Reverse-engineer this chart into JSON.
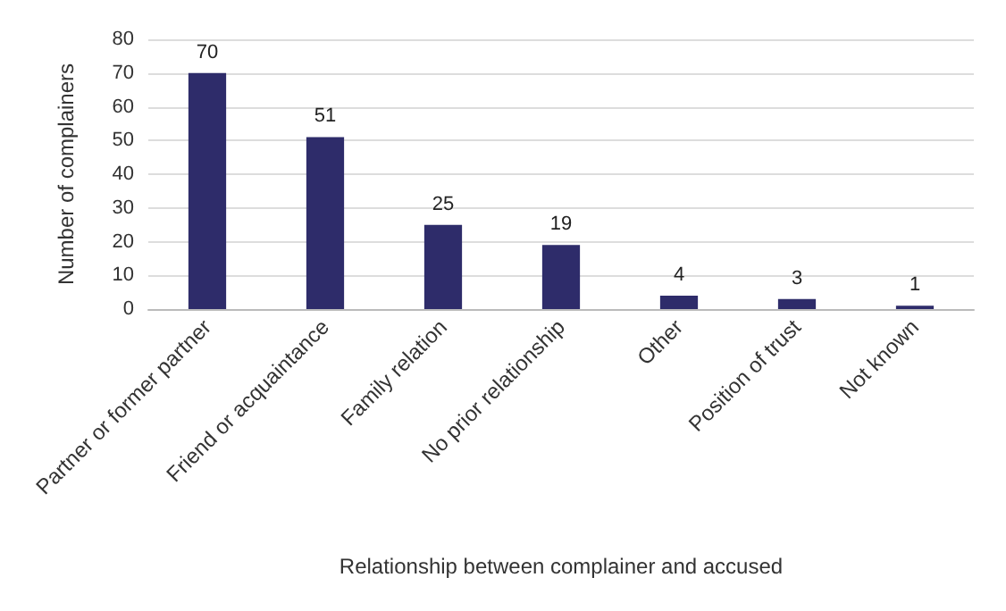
{
  "chart_data": {
    "type": "bar",
    "xlabel": "Relationship between complainer and accused",
    "ylabel": "Number of complainers",
    "categories": [
      "Partner or former partner",
      "Friend or acquaintance",
      "Family relation",
      "No prior relationship",
      "Other",
      "Position of trust",
      "Not known"
    ],
    "values": [
      70,
      51,
      25,
      19,
      4,
      3,
      1
    ],
    "color": "#2e2c6a",
    "ylim": [
      0,
      80
    ],
    "yticks": [
      0,
      10,
      20,
      30,
      40,
      50,
      60,
      70,
      80
    ],
    "grid": "y",
    "data_labels": true
  }
}
